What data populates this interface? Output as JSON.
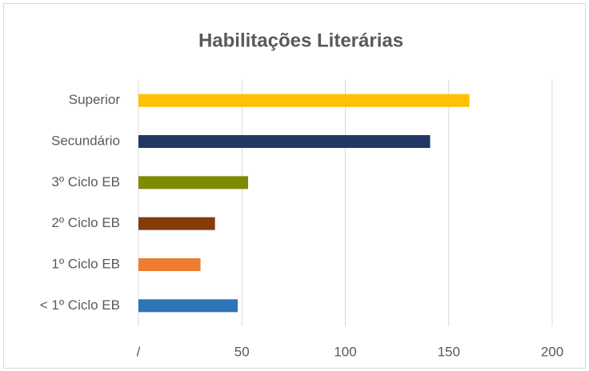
{
  "chart_data": {
    "type": "hbar",
    "title": "Habilitações Literárias",
    "categories": [
      "Superior",
      "Secundário",
      "3º Ciclo EB",
      "2º Ciclo EB",
      "1º Ciclo EB",
      "< 1º Ciclo EB"
    ],
    "values": [
      160,
      141,
      53,
      37,
      30,
      48
    ],
    "colors": [
      "#ffc000",
      "#203864",
      "#7f8a00",
      "#843c0c",
      "#ed7d31",
      "#2e75b6"
    ],
    "xlim": [
      0,
      200
    ],
    "xticks": [
      {
        "value": 0,
        "label": "/"
      },
      50,
      100,
      150,
      200
    ],
    "grid": true
  }
}
